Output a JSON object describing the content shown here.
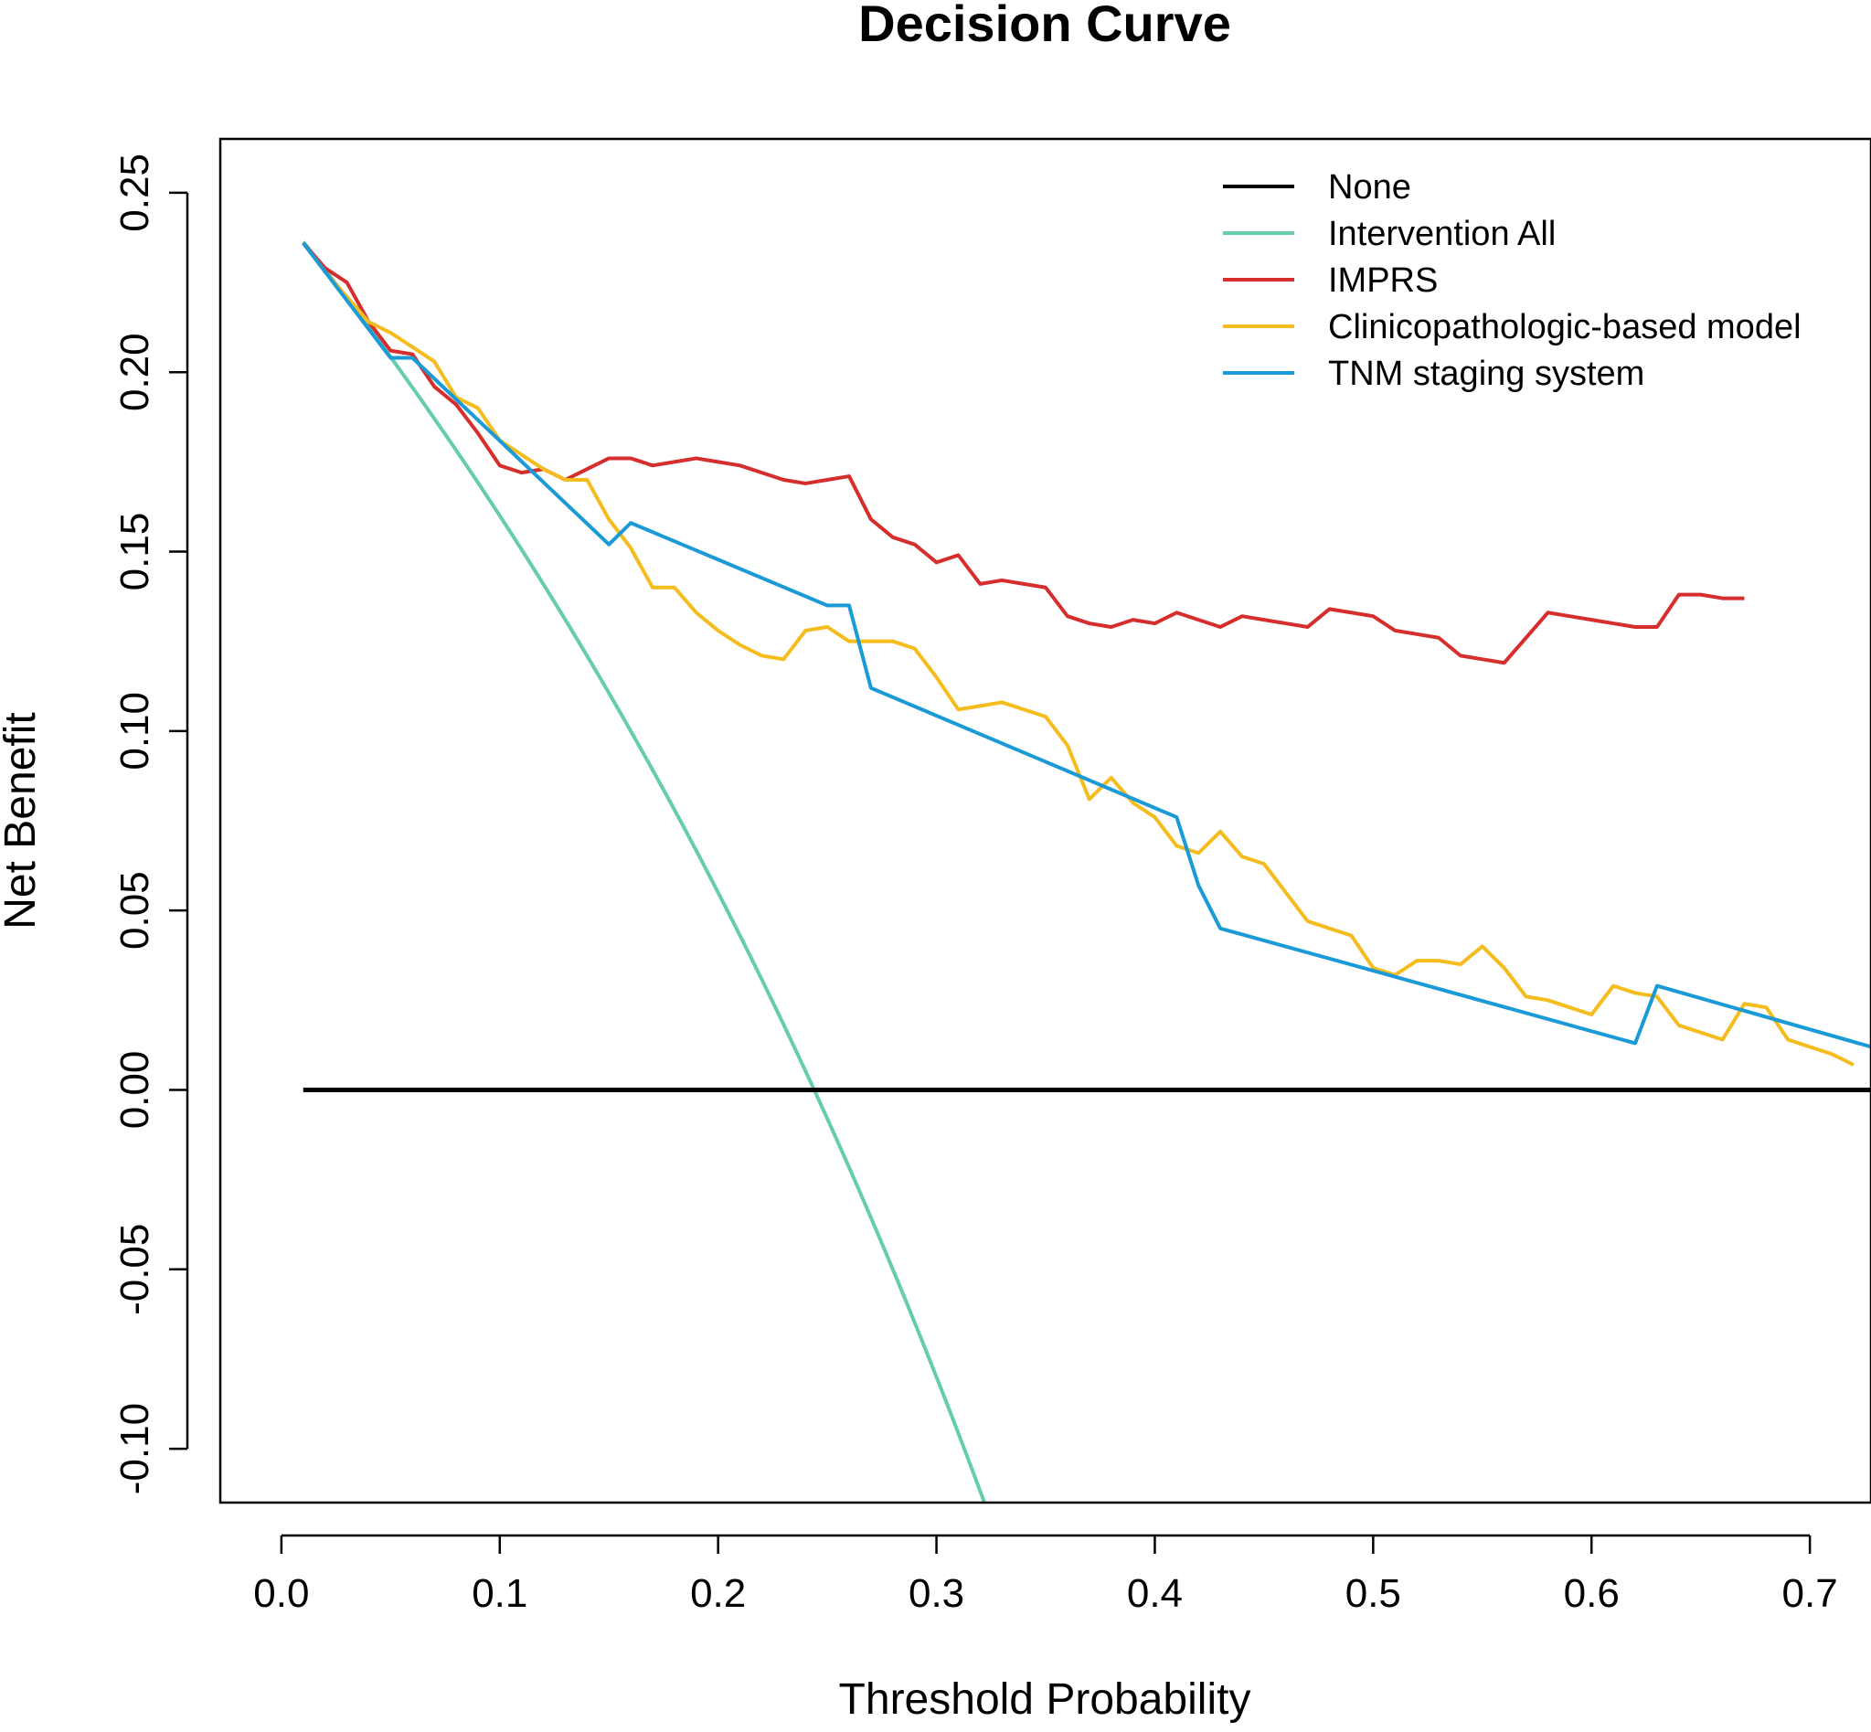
{
  "chart_data": {
    "type": "line",
    "title": "Decision Curve",
    "xlabel": "Threshold Probability",
    "ylabel": "Net Benefit",
    "xlim": [
      -0.028,
      0.728
    ],
    "ylim": [
      -0.115,
      0.265
    ],
    "xticks": [
      0.0,
      0.1,
      0.2,
      0.3,
      0.4,
      0.5,
      0.6,
      0.7
    ],
    "xtick_labels": [
      "0.0",
      "0.1",
      "0.2",
      "0.3",
      "0.4",
      "0.5",
      "0.6",
      "0.7"
    ],
    "yticks": [
      -0.1,
      -0.05,
      0.0,
      0.05,
      0.1,
      0.15,
      0.2,
      0.25
    ],
    "ytick_labels": [
      "-0.10",
      "-0.05",
      "0.00",
      "0.05",
      "0.10",
      "0.15",
      "0.20",
      "0.25"
    ],
    "legend_position": "top-right",
    "series": [
      {
        "name": "None",
        "color": "#000000",
        "x": [
          0.01,
          0.728
        ],
        "y": [
          0.0,
          0.0
        ]
      },
      {
        "name": "Intervention All",
        "color": "#66CDAA",
        "prevalence": 0.244,
        "x_range": [
          0.01,
          0.322
        ]
      },
      {
        "name": "IMPRS",
        "color": "#D62D2D",
        "x": [
          0.01,
          0.02,
          0.03,
          0.04,
          0.05,
          0.06,
          0.07,
          0.08,
          0.09,
          0.1,
          0.11,
          0.12,
          0.13,
          0.14,
          0.15,
          0.16,
          0.17,
          0.18,
          0.19,
          0.2,
          0.21,
          0.22,
          0.23,
          0.24,
          0.25,
          0.26,
          0.27,
          0.28,
          0.29,
          0.3,
          0.31,
          0.32,
          0.33,
          0.34,
          0.35,
          0.36,
          0.37,
          0.38,
          0.39,
          0.4,
          0.41,
          0.42,
          0.43,
          0.44,
          0.45,
          0.46,
          0.47,
          0.48,
          0.49,
          0.5,
          0.51,
          0.52,
          0.53,
          0.54,
          0.55,
          0.56,
          0.57,
          0.58,
          0.59,
          0.6,
          0.61,
          0.62,
          0.63,
          0.64,
          0.65,
          0.66,
          0.67
        ],
        "y": [
          0.236,
          0.229,
          0.225,
          0.214,
          0.206,
          0.205,
          0.196,
          0.191,
          0.183,
          0.174,
          0.172,
          0.173,
          0.17,
          0.173,
          0.176,
          0.176,
          0.174,
          0.175,
          0.176,
          0.175,
          0.174,
          0.172,
          0.17,
          0.169,
          0.17,
          0.171,
          0.159,
          0.154,
          0.152,
          0.147,
          0.149,
          0.141,
          0.142,
          0.141,
          0.14,
          0.132,
          0.13,
          0.129,
          0.131,
          0.13,
          0.133,
          0.131,
          0.129,
          0.132,
          0.131,
          0.13,
          0.129,
          0.134,
          0.133,
          0.132,
          0.128,
          0.127,
          0.126,
          0.121,
          0.12,
          0.119,
          0.126,
          0.133,
          0.132,
          0.131,
          0.13,
          0.129,
          0.129,
          0.138,
          0.138,
          0.137,
          0.137
        ]
      },
      {
        "name": "Clinicopathologic-based model",
        "color": "#F5BC1D",
        "x": [
          0.01,
          0.02,
          0.03,
          0.04,
          0.05,
          0.06,
          0.07,
          0.08,
          0.09,
          0.1,
          0.11,
          0.12,
          0.13,
          0.14,
          0.15,
          0.16,
          0.17,
          0.18,
          0.19,
          0.2,
          0.21,
          0.22,
          0.23,
          0.24,
          0.25,
          0.26,
          0.27,
          0.28,
          0.29,
          0.3,
          0.31,
          0.32,
          0.33,
          0.34,
          0.35,
          0.36,
          0.37,
          0.38,
          0.39,
          0.4,
          0.41,
          0.42,
          0.43,
          0.44,
          0.45,
          0.46,
          0.47,
          0.48,
          0.49,
          0.5,
          0.51,
          0.52,
          0.53,
          0.54,
          0.55,
          0.56,
          0.57,
          0.58,
          0.59,
          0.6,
          0.61,
          0.62,
          0.63,
          0.64,
          0.65,
          0.66,
          0.67,
          0.68,
          0.69,
          0.7,
          0.71,
          0.72
        ],
        "y": [
          0.236,
          0.228,
          0.221,
          0.214,
          0.211,
          0.207,
          0.203,
          0.193,
          0.19,
          0.181,
          0.177,
          0.173,
          0.17,
          0.17,
          0.159,
          0.151,
          0.14,
          0.14,
          0.133,
          0.128,
          0.124,
          0.121,
          0.12,
          0.128,
          0.129,
          0.125,
          0.125,
          0.125,
          0.123,
          0.115,
          0.106,
          0.107,
          0.108,
          0.106,
          0.104,
          0.096,
          0.081,
          0.087,
          0.08,
          0.076,
          0.068,
          0.066,
          0.072,
          0.065,
          0.063,
          0.055,
          0.047,
          0.045,
          0.043,
          0.034,
          0.032,
          0.036,
          0.036,
          0.035,
          0.04,
          0.034,
          0.026,
          0.025,
          0.023,
          0.021,
          0.029,
          0.027,
          0.026,
          0.018,
          0.016,
          0.014,
          0.024,
          0.023,
          0.014,
          0.012,
          0.01,
          0.007
        ]
      },
      {
        "name": "TNM staging system",
        "color": "#1A9AD6",
        "x": [
          0.01,
          0.05,
          0.06,
          0.15,
          0.16,
          0.25,
          0.26,
          0.27,
          0.41,
          0.42,
          0.43,
          0.62,
          0.63,
          0.728
        ],
        "y": [
          0.236,
          0.204,
          0.204,
          0.152,
          0.158,
          0.135,
          0.135,
          0.112,
          0.076,
          0.057,
          0.045,
          0.013,
          0.029,
          0.012
        ]
      }
    ]
  }
}
